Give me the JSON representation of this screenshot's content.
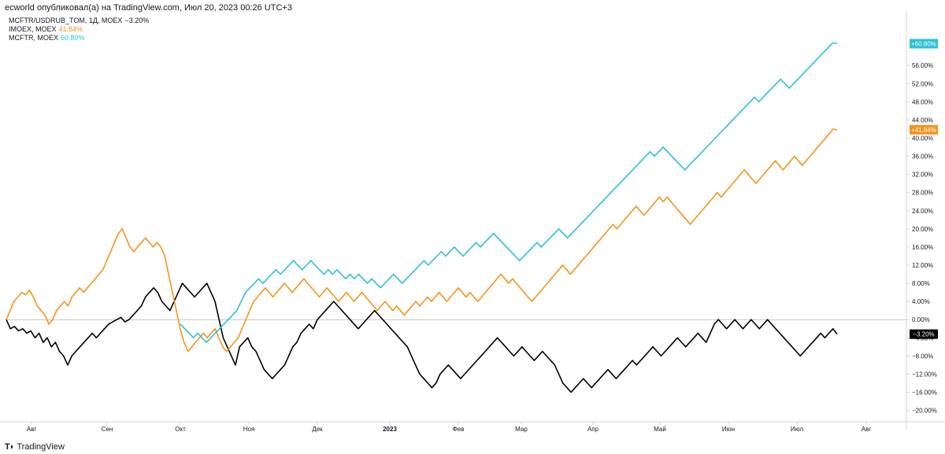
{
  "header": {
    "publish_info": "ecworld опубликовал(а) на TradingView.com, Июл 20, 2023 00:26 UTC+3"
  },
  "footer": {
    "brand": "TradingView"
  },
  "colors": {
    "background": "#ffffff",
    "axis": "#d1d4dc",
    "text": "#131722",
    "zero_line": "#b2b5be"
  },
  "legend": [
    {
      "label": "MCFTR/USDRUB_TOM, 1Д, MOEX",
      "value": "−3.20%",
      "color": "#000000"
    },
    {
      "label": "IMOEX, MOEX",
      "value": "41.84%",
      "color": "#f7931a"
    },
    {
      "label": "MCFTR, MOEX",
      "value": "60.80%",
      "color": "#2cc1d4"
    }
  ],
  "chart_data": {
    "type": "line",
    "title": "",
    "xlabel": "",
    "ylabel": "",
    "ylim": [
      -22.5,
      68
    ],
    "y_unit": "%",
    "grid": false,
    "zero_line": true,
    "legend_position": "top-left",
    "x_ticks": [
      "Авг",
      "Сен",
      "Окт",
      "Ноя",
      "Дек",
      "2023",
      "Фев",
      "Мар",
      "Апр",
      "Май",
      "Июн",
      "Июл",
      "Авг"
    ],
    "y_ticks": [
      "−20.00%",
      "−16.00%",
      "−12.00%",
      "−8.00%",
      "−4.00%",
      "0.00%",
      "4.00%",
      "8.00%",
      "12.00%",
      "16.00%",
      "20.00%",
      "24.00%",
      "28.00%",
      "32.00%",
      "36.00%",
      "40.00%",
      "44.00%",
      "48.00%",
      "52.00%",
      "56.00%"
    ],
    "y_tick_values": [
      -20,
      -16,
      -12,
      -8,
      -4,
      0,
      4,
      8,
      12,
      16,
      20,
      24,
      28,
      32,
      36,
      40,
      44,
      48,
      52,
      56
    ],
    "last_value_labels": [
      {
        "text": "+60.80%",
        "value": 60.8,
        "color": "#2cc1d4"
      },
      {
        "text": "+41.84%",
        "value": 41.84,
        "color": "#f7931a"
      },
      {
        "text": "−3.20%",
        "value": -3.2,
        "color": "#000000"
      }
    ],
    "series": [
      {
        "name": "MCFTR/USDRUB_TOM",
        "color": "#000000",
        "values": [
          0,
          -2,
          -1.5,
          -2.5,
          -2,
          -3,
          -2.5,
          -4,
          -3,
          -5,
          -4,
          -6,
          -5,
          -7,
          -8,
          -10,
          -8,
          -7,
          -6,
          -5,
          -4,
          -3,
          -4,
          -3,
          -2,
          -1,
          -0.5,
          0,
          0.5,
          -0.5,
          0,
          1,
          2,
          3,
          5,
          6,
          7,
          6,
          4,
          3,
          2,
          4,
          6,
          8,
          7,
          6,
          5,
          6,
          7,
          8,
          6,
          4,
          0,
          -4,
          -6,
          -8,
          -10,
          -6,
          -5,
          -4,
          -6,
          -7,
          -9,
          -11,
          -12,
          -13,
          -12,
          -11,
          -10,
          -8,
          -6,
          -5,
          -3,
          -2,
          -1,
          -2,
          0,
          1,
          2,
          3,
          4,
          3,
          2,
          1,
          0,
          -1,
          -2,
          -1,
          0,
          1,
          2,
          1,
          0,
          -1,
          -2,
          -3,
          -4,
          -5,
          -6,
          -8,
          -10,
          -12,
          -13,
          -14,
          -15,
          -14,
          -12,
          -11,
          -10,
          -11,
          -12,
          -13,
          -12,
          -11,
          -10,
          -9,
          -8,
          -7,
          -6,
          -5,
          -4,
          -5,
          -6,
          -7,
          -8,
          -7,
          -6,
          -7,
          -8,
          -9,
          -8,
          -7,
          -8,
          -9,
          -10,
          -12,
          -14,
          -15,
          -16,
          -15,
          -14,
          -13,
          -14,
          -15,
          -14,
          -13,
          -12,
          -11,
          -12,
          -13,
          -12,
          -11,
          -10,
          -9,
          -10,
          -9,
          -8,
          -7,
          -6,
          -7,
          -8,
          -7,
          -6,
          -5,
          -4,
          -5,
          -6,
          -5,
          -4,
          -3,
          -4,
          -5,
          -3,
          -1,
          0,
          -1,
          -2,
          -1,
          0,
          -1,
          -2,
          -1,
          0,
          -1,
          -2,
          -1,
          0,
          -1,
          -2,
          -3,
          -4,
          -5,
          -6,
          -7,
          -8,
          -7,
          -6,
          -5,
          -4,
          -3,
          -4,
          -3,
          -2,
          -3.2
        ]
      },
      {
        "name": "IMOEX",
        "color": "#f7931a",
        "values": [
          0,
          2,
          4,
          5,
          6,
          5.5,
          6.5,
          5,
          3,
          2,
          1,
          -1,
          0,
          2,
          3,
          4,
          3,
          5,
          6,
          7,
          6,
          7,
          8,
          9,
          10,
          11,
          13,
          15,
          17,
          19,
          20,
          18,
          16,
          15,
          16,
          17,
          18,
          17,
          16,
          17,
          16,
          14,
          10,
          6,
          2,
          -2,
          -5,
          -7,
          -6,
          -5,
          -4,
          -3,
          -4,
          -3,
          -2,
          -4,
          -6,
          -7,
          -6,
          -5,
          -4,
          -2,
          0,
          2,
          4,
          5,
          6,
          7,
          6,
          5,
          6,
          7,
          8,
          7,
          6,
          7,
          8,
          9,
          8,
          7,
          6,
          5,
          6,
          7,
          6,
          5,
          4,
          5,
          6,
          5,
          4,
          5,
          6,
          5,
          4,
          3,
          2,
          3,
          4,
          3,
          2,
          3,
          2,
          1,
          2,
          3,
          4,
          3,
          4,
          5,
          4,
          5,
          6,
          5,
          4,
          5,
          6,
          7,
          6,
          5,
          6,
          5,
          4,
          5,
          6,
          7,
          8,
          9,
          10,
          9,
          8,
          9,
          8,
          7,
          6,
          5,
          4,
          5,
          6,
          7,
          8,
          9,
          10,
          11,
          12,
          11,
          10,
          11,
          12,
          13,
          14,
          15,
          16,
          17,
          18,
          19,
          20,
          21,
          20,
          21,
          22,
          23,
          24,
          25,
          24,
          23,
          24,
          25,
          26,
          27,
          26,
          27,
          26,
          25,
          24,
          23,
          22,
          21,
          22,
          23,
          24,
          25,
          26,
          27,
          28,
          27,
          28,
          29,
          30,
          31,
          32,
          33,
          32,
          31,
          30,
          31,
          32,
          33,
          34,
          35,
          34,
          33,
          34,
          35,
          36,
          35,
          34,
          35,
          36,
          37,
          38,
          39,
          40,
          41,
          42,
          41.84
        ]
      },
      {
        "name": "MCFTR",
        "color": "#2cc1d4",
        "values": [
          -1,
          -2,
          -3,
          -4,
          -3,
          -4,
          -5,
          -4,
          -3,
          -2,
          -1,
          0,
          1,
          2,
          4,
          6,
          7,
          8,
          9,
          8,
          9,
          10,
          11,
          10,
          11,
          12,
          13,
          12,
          11,
          12,
          13,
          12,
          11,
          10,
          11,
          10,
          11,
          10,
          9,
          10,
          9,
          10,
          9,
          8,
          9,
          8,
          7,
          8,
          9,
          10,
          9,
          8,
          9,
          10,
          11,
          12,
          13,
          12,
          13,
          14,
          15,
          14,
          15,
          16,
          15,
          14,
          15,
          16,
          17,
          16,
          17,
          18,
          19,
          18,
          17,
          16,
          15,
          14,
          13,
          14,
          15,
          16,
          17,
          16,
          17,
          18,
          19,
          20,
          19,
          18,
          19,
          20,
          21,
          22,
          23,
          24,
          25,
          26,
          27,
          28,
          29,
          30,
          31,
          32,
          33,
          34,
          35,
          36,
          37,
          36,
          37,
          38,
          37,
          36,
          35,
          34,
          33,
          34,
          35,
          36,
          37,
          38,
          39,
          40,
          41,
          42,
          43,
          44,
          45,
          46,
          47,
          48,
          49,
          48,
          49,
          50,
          51,
          52,
          53,
          52,
          51,
          52,
          53,
          54,
          55,
          56,
          57,
          58,
          59,
          60,
          61,
          60.8
        ]
      }
    ]
  }
}
